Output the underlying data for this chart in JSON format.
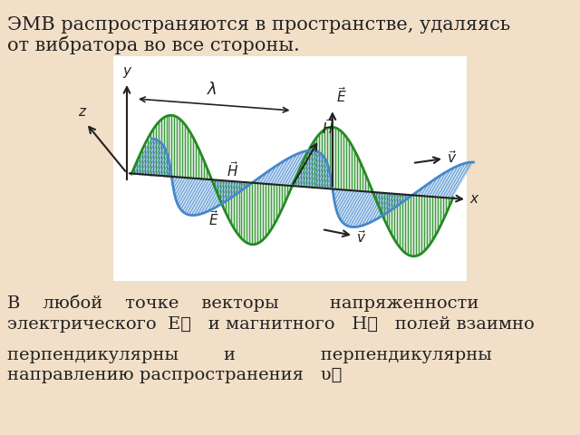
{
  "bg_color": "#f2dfc8",
  "diagram_bg": "#ffffff",
  "green_color": "#228B22",
  "blue_color": "#4488cc",
  "axis_color": "#222222",
  "text_color": "#222222",
  "title_text": "ЭМВ распространяются в пространстве, удаляясь",
  "title_text2": "от вибратора во все стороны.",
  "bottom1": "В    любой    точке    векторы         напряженности",
  "bottom2": "электрического  E⃗   и магнитного   H⃗   полей взаимно",
  "bottom3": "перпендикулярны        и               перпендикулярны",
  "bottom4": "направлению распространения   υ⃗"
}
